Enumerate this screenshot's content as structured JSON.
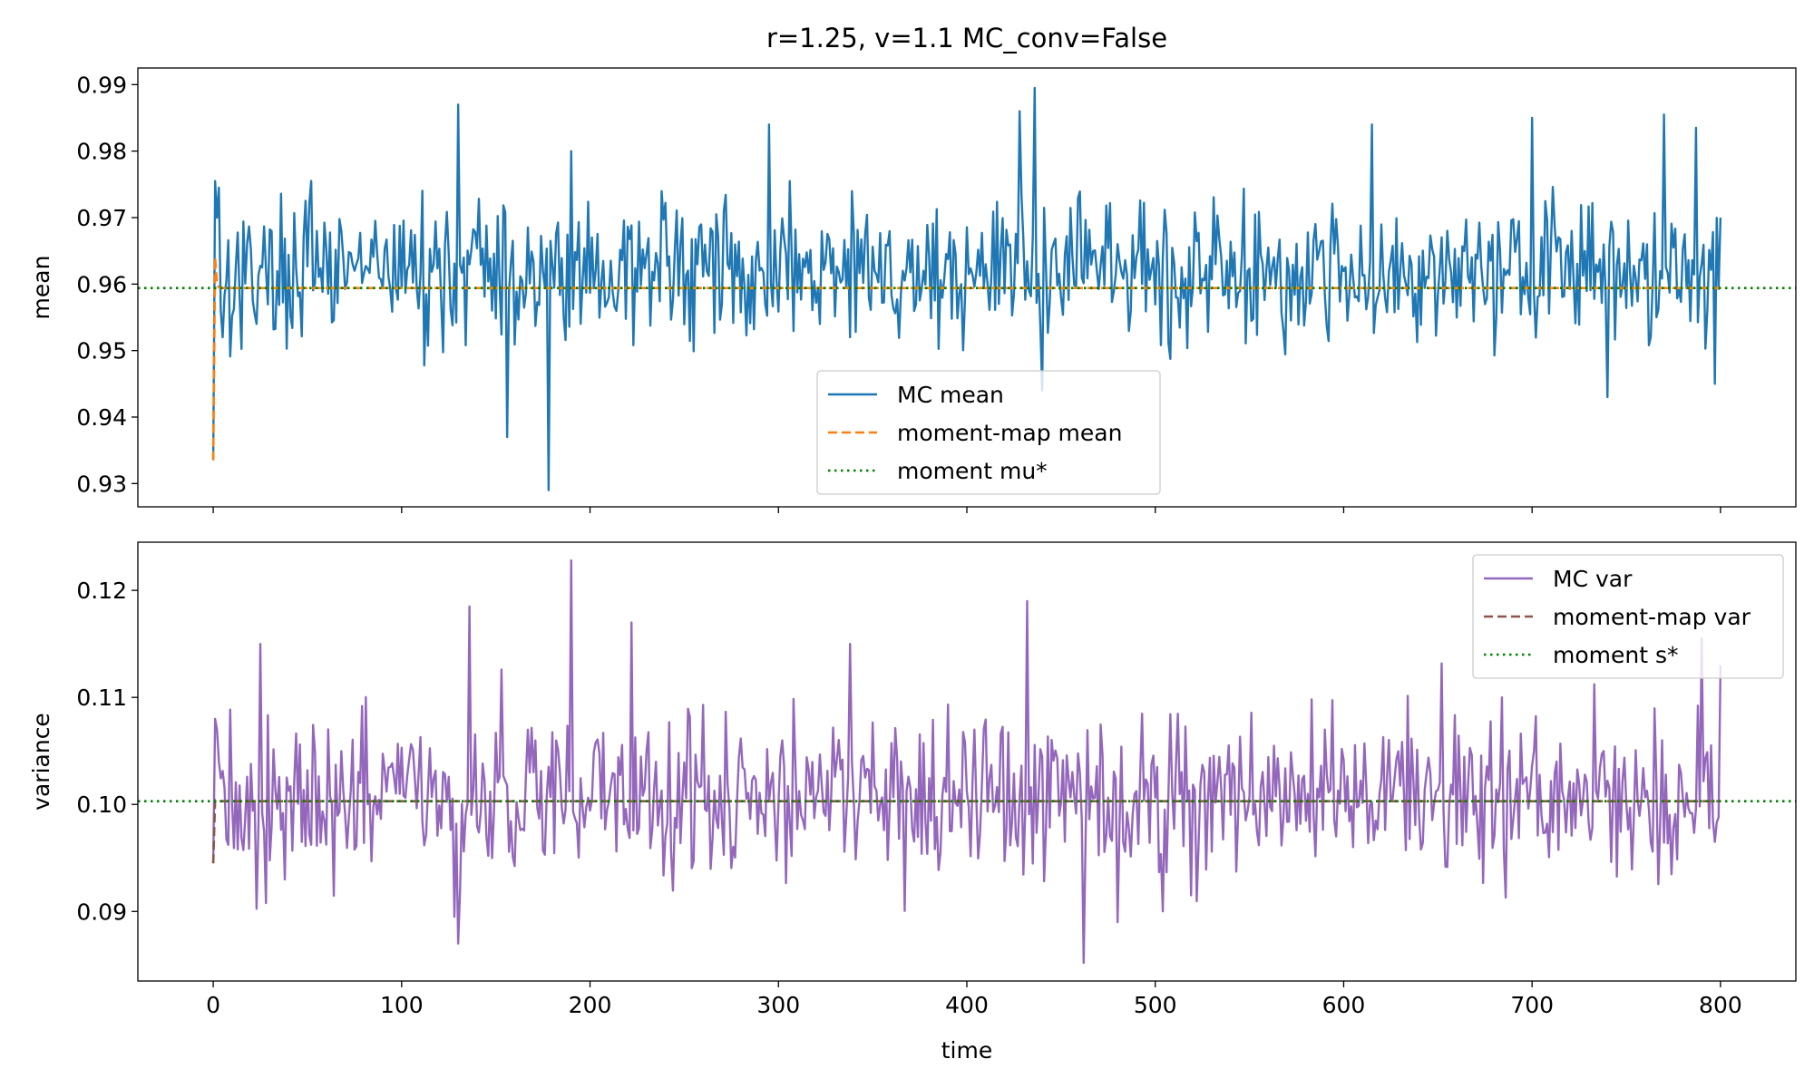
{
  "chart_data": {
    "type": "line",
    "title": "r=1.25, v=1.1   MC_conv=False",
    "xlabel": "time",
    "xlim": [
      -40,
      840
    ],
    "x_ticks": [
      "0",
      "100",
      "200",
      "300",
      "400",
      "500",
      "600",
      "700",
      "800"
    ],
    "x_tick_values": [
      0,
      100,
      200,
      300,
      400,
      500,
      600,
      700,
      800
    ],
    "panels": [
      {
        "ylabel": "mean",
        "ylim": [
          0.9265,
          0.9925
        ],
        "y_ticks": [
          "0.93",
          "0.94",
          "0.95",
          "0.96",
          "0.97",
          "0.98",
          "0.99"
        ],
        "y_tick_values": [
          0.93,
          0.94,
          0.95,
          0.96,
          0.97,
          0.98,
          0.99
        ],
        "legend_position": "lower-center",
        "series": [
          {
            "name": "MC mean",
            "style": "solid",
            "color": "#1f77b4",
            "x_start": 0,
            "x_end": 800,
            "points": 801,
            "center": 0.962,
            "amplitude": 0.0065,
            "seed": 17,
            "anchors": [
              [
                0,
                0.9335
              ],
              [
                1,
                0.9755
              ],
              [
                2,
                0.97
              ],
              [
                3,
                0.9745
              ],
              [
                4,
                0.956
              ],
              [
                5,
                0.952
              ],
              [
                130,
                0.987
              ],
              [
                156,
                0.937
              ],
              [
                178,
                0.929
              ],
              [
                190,
                0.98
              ],
              [
                295,
                0.984
              ],
              [
                436,
                0.9895
              ],
              [
                428,
                0.986
              ],
              [
                440,
                0.944
              ],
              [
                615,
                0.984
              ],
              [
                700,
                0.985
              ],
              [
                740,
                0.943
              ],
              [
                770,
                0.9855
              ],
              [
                787,
                0.9835
              ],
              [
                797,
                0.945
              ],
              [
                800,
                0.97
              ]
            ],
            "min": 0.929,
            "max": 0.9895
          },
          {
            "name": "moment-map mean",
            "style": "dashed",
            "color": "#ff7f0e",
            "x": [
              0,
              1,
              2,
              3,
              4,
              800
            ],
            "y": [
              0.9335,
              0.964,
              0.96,
              0.9595,
              0.9594,
              0.9594
            ]
          },
          {
            "name": "moment mu*",
            "style": "dotted",
            "color": "#008000",
            "hline": 0.9594
          }
        ]
      },
      {
        "ylabel": "variance",
        "ylim": [
          0.0835,
          0.1245
        ],
        "y_ticks": [
          "0.09",
          "0.10",
          "0.11",
          "0.12"
        ],
        "y_tick_values": [
          0.09,
          0.1,
          0.11,
          0.12
        ],
        "legend_position": "upper-right",
        "series": [
          {
            "name": "MC var",
            "style": "solid",
            "color": "#9467bd",
            "x_start": 0,
            "x_end": 800,
            "points": 801,
            "center": 0.1008,
            "amplitude": 0.0048,
            "seed": 91,
            "anchors": [
              [
                0,
                0.0945
              ],
              [
                1,
                0.108
              ],
              [
                2,
                0.107
              ],
              [
                3,
                0.104
              ],
              [
                25,
                0.115
              ],
              [
                136,
                0.1185
              ],
              [
                128,
                0.0895
              ],
              [
                130,
                0.087
              ],
              [
                190,
                0.1228
              ],
              [
                222,
                0.117
              ],
              [
                338,
                0.115
              ],
              [
                432,
                0.119
              ],
              [
                462,
                0.0852
              ],
              [
                480,
                0.089
              ],
              [
                790,
                0.1155
              ],
              [
                797,
                0.0965
              ],
              [
                800,
                0.113
              ]
            ],
            "min": 0.0852,
            "max": 0.1228
          },
          {
            "name": "moment-map var",
            "style": "dashed",
            "color": "#8c564b",
            "x": [
              0,
              1,
              2,
              3,
              800
            ],
            "y": [
              0.0945,
              0.1004,
              0.1003,
              0.1003,
              0.1003
            ]
          },
          {
            "name": "moment s*",
            "style": "dotted",
            "color": "#008000",
            "hline": 0.1003
          }
        ]
      }
    ],
    "grid": false
  }
}
